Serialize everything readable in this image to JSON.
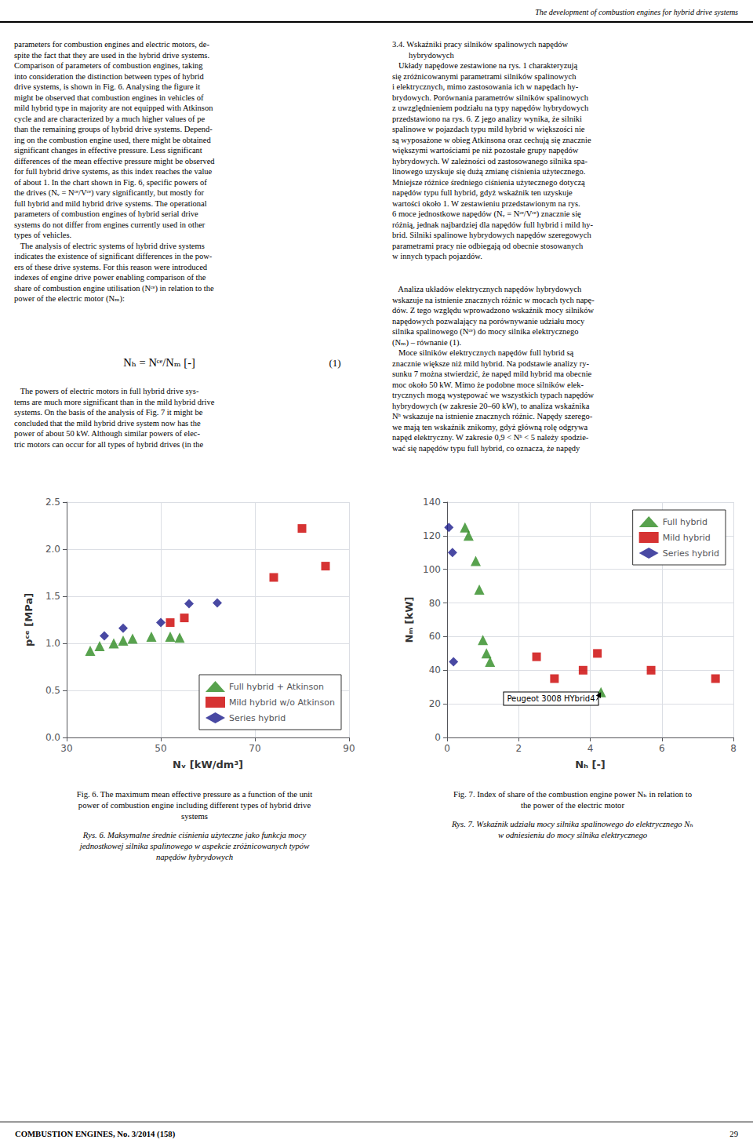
{
  "chart_data": [
    {
      "type": "scatter",
      "title": "Fig. 6. The maximum mean effective pressure as a function of the unit\npower of combustion engine including different types of hybrid drive\nsystems",
      "subtitle": "Rys. 6. Maksymalne średnie ciśnienia użyteczne jako funkcja mocy\njednostkowej silnika spalinowego w aspekcie zróżnicowanych typów\nnapędów hybrydowych",
      "xlabel": "Nᵥ [kW/dm³]",
      "ylabel": "pᶜᵉ [MPa]",
      "xlim": [
        30,
        90
      ],
      "ylim": [
        0.0,
        2.5
      ],
      "xticks": [
        30,
        50,
        70,
        90
      ],
      "yticks": [
        {
          "value": 0.0,
          "label": "0.0"
        },
        0.5,
        {
          "value": 1.0,
          "label": "1.0"
        },
        1.5,
        {
          "value": 2.0,
          "label": "2.0"
        },
        2.5
      ],
      "grid": true,
      "legend": "lower right",
      "series": [
        {
          "name": "Full hybrid + Atkinson",
          "color": "#2E8B22",
          "marker": "triangle",
          "x": [
            35,
            37,
            40,
            42,
            44,
            48,
            52,
            54
          ],
          "values": [
            0.92,
            0.97,
            1.0,
            1.03,
            1.05,
            1.07,
            1.07,
            1.06
          ]
        },
        {
          "name": "Mild hybrid w/o Atkinson",
          "color": "#CC0000",
          "marker": "square",
          "x": [
            52,
            55,
            74,
            80,
            85
          ],
          "values": [
            1.22,
            1.27,
            1.7,
            2.22,
            1.82
          ]
        },
        {
          "name": "Series hybrid",
          "color": "#1C1C8C",
          "marker": "diamond",
          "x": [
            38,
            42,
            50,
            56,
            62
          ],
          "values": [
            1.08,
            1.16,
            1.22,
            1.42,
            1.43
          ]
        }
      ]
    },
    {
      "type": "scatter",
      "title": "Fig. 7. Index of share of the combustion engine power Nₕ in relation to\nthe power of the electric motor",
      "subtitle": "Rys. 7. Wskaźnik udziału mocy silnika spalinowego do elektrycznego Nₕ\nw odniesieniu do mocy silnika elektrycznego",
      "xlabel": "Nₕ [-]",
      "ylabel": "Nₘ [kW]",
      "xlim": [
        0,
        8
      ],
      "ylim": [
        0,
        140
      ],
      "xticks": [
        0,
        2,
        4,
        6,
        8
      ],
      "yticks": [
        0,
        20,
        40,
        60,
        80,
        100,
        120,
        140
      ],
      "grid": true,
      "legend": "upper right",
      "series": [
        {
          "name": "Full hybrid",
          "color": "#2E8B22",
          "marker": "triangle",
          "x": [
            0.5,
            0.6,
            0.8,
            0.9,
            1.0,
            1.1,
            1.2,
            4.3
          ],
          "values": [
            125,
            120,
            105,
            88,
            58,
            50,
            45,
            27
          ]
        },
        {
          "name": "Mild hybrid",
          "color": "#CC0000",
          "marker": "square",
          "x": [
            2.5,
            3.0,
            3.8,
            4.2,
            5.7,
            7.5
          ],
          "values": [
            48,
            35,
            40,
            50,
            40,
            35
          ]
        },
        {
          "name": "Series hybrid",
          "color": "#1C1C8C",
          "marker": "diamond",
          "x": [
            0.05,
            0.15,
            0.18
          ],
          "values": [
            125,
            110,
            45
          ]
        }
      ],
      "annotations": [
        {
          "text": "Peugeot 3008 HYbrid4",
          "xy": [
            4.3,
            27
          ],
          "xytext": [
            1.5,
            18
          ]
        }
      ]
    }
  ],
  "annotations": [
    "The development of combustion engines for hybrid drive systems",
    "COMBUSTION ENGINES, No. 3/2014 (158)",
    "29",
    "parameters for combustion engines and electric motors, de-\nspite the fact that they are used in the hybrid drive systems.\nComparison of parameters of combustion engines, taking\ninto consideration the distinction between types of hybrid\ndrive systems, is shown in Fig. 6. Analysing the figure it\nmight be observed that combustion engines in vehicles of\nmild hybrid type in majority are not equipped with Atkinson\ncycle and are characterized by a much higher values of pe\nthan the remaining groups of hybrid drive systems. Depend-\ning on the combustion engine used, there might be obtained\nsignificant changes in effective pressure. Less significant\ndifferences of the mean effective pressure might be observed\nfor full hybrid drive systems, as this index reaches the value\nof about 1. In the chart shown in Fig. 6, specific powers of\nthe drives (Nᵥ = Nᶜᵉ/Vᶜᵉ) vary significantly, but mostly for\nfull hybrid and mild hybrid drive systems. The operational\nparameters of combustion engines of hybrid serial drive\nsystems do not differ from engines currently used in other\ntypes of vehicles.\n   The analysis of electric systems of hybrid drive systems\nindicates the existence of significant differences in the pow-\ners of these drive systems. For this reason were introduced\nindexes of engine drive power enabling comparison of the\nshare of combustion engine utilisation (Nᶜᵉ) in relation to the\npower of the electric motor (Nₘ):",
    "3.4. Wskaźniki pracy silników spalinowych napędów\n        hybrydowych\n   Układy napędowe zestawione na rys. 1 charakteryzują\nsię zróżnicowanymi parametrami silników spalinowych\ni elektrycznych, mimo zastosowania ich w napędach hy-\nbrydowych. Porównania parametrów silników spalinowych\nz uwzględnieniem podziału na typy napędów hybrydowych\nprzedstawiono na rys. 6. Z jego analizy wynika, że silniki\nspalinowe w pojazdach typu mild hybrid w większości nie\nsą wyposażone w obieg Atkinsona oraz cechują się znacznie\nwiększymi wartościami pe niż pozostałe grupy napędów\nhybrydowych. W zależności od zastosowanego silnika spa-\nlinowego uzyskuje się dużą zmianę ciśnienia użytecznego.\nMniejsze różnice średniego ciśnienia użytecznego dotyczą\nnapędów typu full hybrid, gdyż wskaźnik ten uzyskuje\nwartości około 1. W zestawieniu przedstawionym na rys.\n6 moce jednostkowe napędów (Nᵥ = Nᶜᵉ/Vᶜᵉ) znacznie się\nróżnią, jednak najbardziej dla napędów full hybrid i mild hy-\nbrid. Silniki spalinowe hybrydowych napędów szeregowych\nparametrami pracy nie odbiegają od obecnie stosowanych\nw innych typach pojazdów.",
    "Nₕ = Nᶜᵉ/Nₘ [-]",
    "(1)",
    "   The powers of electric motors in full hybrid drive sys-\ntems are much more significant than in the mild hybrid drive\nsystems. On the basis of the analysis of Fig. 7 it might be\nconcluded that the mild hybrid drive system now has the\npower of about 50 kW. Although similar powers of elec-\ntric motors can occur for all types of hybrid drives (in the",
    "   Analiza układów elektrycznych napędów hybrydowych\nwskazuje na istnienie znacznych różnic w mocach tych napę-\ndów. Z tego względu wprowadzono wskaźnik mocy silników\nnapędowych pozwalający na porównywanie udziału mocy\nsilnika spalinowego (Nᶜᵉ) do mocy silnika elektrycznego\n(Nₘ) – równanie (1).\n   Moce silników elektrycznych napędów full hybrid są\nznacznie większe niż mild hybrid. Na podstawie analizy ry-\nsunku 7 można stwierdzić, że napęd mild hybrid ma obecnie\nmoc około 50 kW. Mimo że podobne moce silników elek-\ntrycznych mogą występować we wszystkich typach napędów\nhybrydowych (w zakresie 20–60 kW), to analiza wskaźnika\nNʰ wskazuje na istnienie znacznych różnic. Napędy szerego-\nwe mają ten wskaźnik znikomy, gdyż główną rolę odgrywa\nnapęd elektryczny. W zakresie 0,9 < Nʰ < 5 należy spodzie-\nwać się napędów typu full hybrid, co oznacza, że napędy"
  ]
}
